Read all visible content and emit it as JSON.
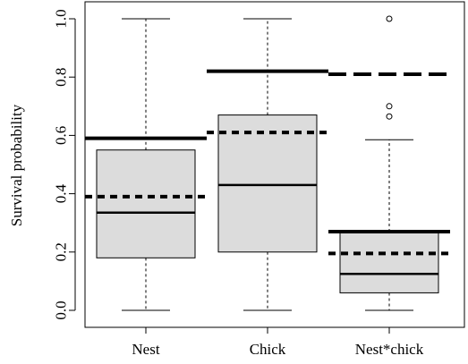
{
  "chart_data": {
    "type": "boxplot",
    "ylabel": "Survival probability",
    "xlabel": "",
    "ylim": [
      0,
      1.0
    ],
    "yticks": [
      0.0,
      0.2,
      0.4,
      0.6,
      0.8,
      1.0
    ],
    "ytick_labels": [
      "0.0",
      "0.2",
      "0.4",
      "0.6",
      "0.8",
      "1.0"
    ],
    "categories": [
      "Nest",
      "Chick",
      "Nest*chick"
    ],
    "boxes": [
      {
        "category": "Nest",
        "whisker_low": 0.0,
        "q1": 0.18,
        "median": 0.335,
        "q3": 0.55,
        "whisker_high": 1.0,
        "outliers": []
      },
      {
        "category": "Chick",
        "whisker_low": 0.0,
        "q1": 0.2,
        "median": 0.43,
        "q3": 0.67,
        "whisker_high": 1.0,
        "outliers": []
      },
      {
        "category": "Nest*chick",
        "whisker_low": 0.0,
        "q1": 0.06,
        "median": 0.125,
        "q3": 0.27,
        "whisker_high": 0.585,
        "outliers": [
          0.665,
          0.7,
          1.0
        ]
      }
    ],
    "reference_lines": [
      {
        "category": "Nest",
        "style": "solid",
        "value": 0.59
      },
      {
        "category": "Nest",
        "style": "dotted",
        "value": 0.39
      },
      {
        "category": "Chick",
        "style": "solid",
        "value": 0.82
      },
      {
        "category": "Chick",
        "style": "dotted",
        "value": 0.61
      },
      {
        "category": "Nest*chick",
        "style": "dashed",
        "value": 0.81
      },
      {
        "category": "Nest*chick",
        "style": "solid",
        "value": 0.27
      },
      {
        "category": "Nest*chick",
        "style": "dotted",
        "value": 0.195
      }
    ],
    "colors": {
      "box_fill": "#dcdcdc",
      "line": "#000000",
      "frame": "#000000"
    },
    "grid": false
  }
}
